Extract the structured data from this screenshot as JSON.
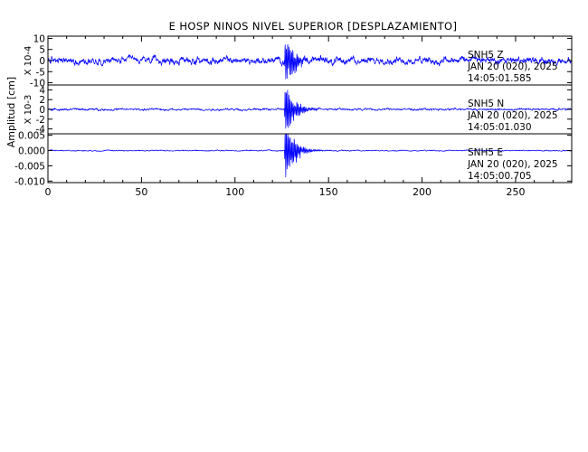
{
  "chart_data": {
    "type": "line",
    "title": "E HOSP NINOS NIVEL SUPERIOR [DESPLAZAMIENTO]",
    "ylabel": "Amplitud [cm]",
    "xlabel": "",
    "xlim": [
      0,
      280
    ],
    "xticks": [
      0,
      50,
      100,
      150,
      200,
      250
    ],
    "line_color": "#0000ff",
    "panels": [
      {
        "name": "SNH5 Z",
        "station": "SNH5",
        "component": "Z",
        "date": "JAN 20 (020), 2025",
        "time": "14:05:01.585",
        "scale_label": "X 10-4",
        "ylim": [
          -11,
          11
        ],
        "yticks": [
          10,
          5,
          0,
          -5,
          -10
        ],
        "ytick_labels": [
          "10",
          "5",
          "0",
          "-5",
          "-10"
        ],
        "peak_time": 128,
        "peak_amplitude": 9.5,
        "background_amplitude": 4.5
      },
      {
        "name": "SNH5 N",
        "station": "SNH5",
        "component": "N",
        "date": "JAN 20 (020), 2025",
        "time": "14:05:01.030",
        "scale_label": "X 10-3",
        "ylim": [
          -5,
          5
        ],
        "yticks": [
          4,
          2,
          0,
          -2,
          -4
        ],
        "ytick_labels": [
          "4",
          "2",
          "0",
          "-2",
          "-4"
        ],
        "peak_time": 128,
        "peak_amplitude": 4.5,
        "background_amplitude": 0.6
      },
      {
        "name": "SNH5 E",
        "station": "SNH5",
        "component": "E",
        "date": "JAN 20 (020), 2025",
        "time": "14:05:00.705",
        "scale_label": "",
        "ylim": [
          -0.0105,
          0.0055
        ],
        "yticks": [
          0.005,
          0,
          -0.005,
          -0.01
        ],
        "ytick_labels": [
          "0.005",
          "0.000",
          "-0.005",
          "-0.010"
        ],
        "peak_time": 128,
        "peak_amplitude": 0.009,
        "background_amplitude": 0.0005
      }
    ]
  }
}
